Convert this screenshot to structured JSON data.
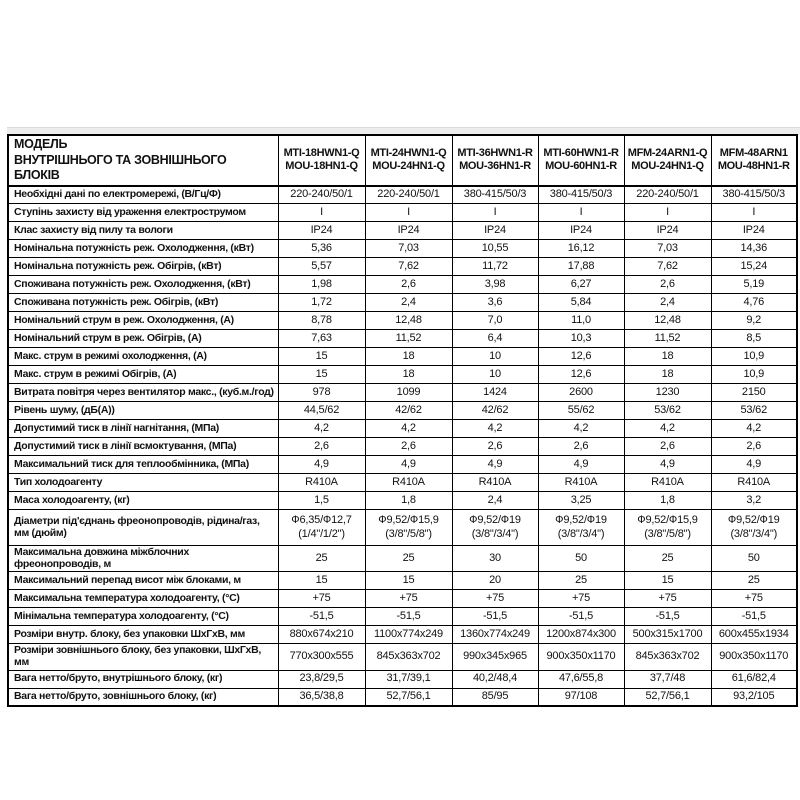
{
  "page": {
    "background_color": "#ffffff",
    "strip_color": "#ededed",
    "table_border_color": "#000000",
    "text_color": "#111111"
  },
  "table": {
    "header": {
      "param_title": "МОДЕЛЬ\nВНУТРІШНЬОГО ТА ЗОВНІШНЬОГО БЛОКІВ",
      "models": [
        {
          "text": "MTI-18HWN1-Q\nMOU-18HN1-Q"
        },
        {
          "text": "MTI-24HWN1-Q\nMOU-24HN1-Q"
        },
        {
          "text": "MTI-36HWN1-R\nMOU-36HN1-R"
        },
        {
          "text": "MTI-60HWN1-R\nMOU-60HN1-R"
        },
        {
          "text": "MFM-24ARN1-Q\nMOU-24HN1-Q"
        },
        {
          "text": "MFM-48ARN1\nMOU-48HN1-R"
        }
      ]
    },
    "rows": [
      {
        "label": "Необхідні дані по електромережі, (В/Гц/Ф)",
        "values": [
          "220-240/50/1",
          "220-240/50/1",
          "380-415/50/3",
          "380-415/50/3",
          "220-240/50/1",
          "380-415/50/3"
        ]
      },
      {
        "label": "Ступінь захисту від ураження електрострумом",
        "values": [
          "I",
          "I",
          "I",
          "I",
          "I",
          "I"
        ]
      },
      {
        "label": "Клас захисту від пилу та вологи",
        "values": [
          "IP24",
          "IP24",
          "IP24",
          "IP24",
          "IP24",
          "IP24"
        ]
      },
      {
        "label": "Номінальна потужність реж. Охолодження, (кВт)",
        "values": [
          "5,36",
          "7,03",
          "10,55",
          "16,12",
          "7,03",
          "14,36"
        ]
      },
      {
        "label": "Номінальна потужність реж. Обігрів, (кВт)",
        "values": [
          "5,57",
          "7,62",
          "11,72",
          "17,88",
          "7,62",
          "15,24"
        ]
      },
      {
        "label": "Споживана потужність реж. Охолодження, (кВт)",
        "values": [
          "1,98",
          "2,6",
          "3,98",
          "6,27",
          "2,6",
          "5,19"
        ]
      },
      {
        "label": "Споживана потужність реж. Обігрів, (кВт)",
        "values": [
          "1,72",
          "2,4",
          "3,6",
          "5,84",
          "2,4",
          "4,76"
        ]
      },
      {
        "label": "Номінальний струм в реж. Охолодження, (А)",
        "values": [
          "8,78",
          "12,48",
          "7,0",
          "11,0",
          "12,48",
          "9,2"
        ]
      },
      {
        "label": "Номінальний струм в реж. Обігрів, (А)",
        "values": [
          "7,63",
          "11,52",
          "6,4",
          "10,3",
          "11,52",
          "8,5"
        ]
      },
      {
        "label": "Макс. струм в режимі охолодження, (А)",
        "values": [
          "15",
          "18",
          "10",
          "12,6",
          "18",
          "10,9"
        ]
      },
      {
        "label": "Макс. струм в режимі Обігрів, (А)",
        "values": [
          "15",
          "18",
          "10",
          "12,6",
          "18",
          "10,9"
        ]
      },
      {
        "label": "Витрата повітря через вентилятор макс., (куб.м./год)",
        "values": [
          "978",
          "1099",
          "1424",
          "2600",
          "1230",
          "2150"
        ]
      },
      {
        "label": "Рівень шуму, (дБ(А))",
        "values": [
          "44,5/62",
          "42/62",
          "42/62",
          "55/62",
          "53/62",
          "53/62"
        ]
      },
      {
        "label": "Допустимий тиск в лінії нагнітання, (МПа)",
        "values": [
          "4,2",
          "4,2",
          "4,2",
          "4,2",
          "4,2",
          "4,2"
        ]
      },
      {
        "label": "Допустимий тиск в лінії всмоктування, (МПа)",
        "values": [
          "2,6",
          "2,6",
          "2,6",
          "2,6",
          "2,6",
          "2,6"
        ]
      },
      {
        "label": "Максимальний тиск для теплообмінника, (МПа)",
        "values": [
          "4,9",
          "4,9",
          "4,9",
          "4,9",
          "4,9",
          "4,9"
        ]
      },
      {
        "label": "Тип холодоагенту",
        "values": [
          "R410A",
          "R410A",
          "R410A",
          "R410A",
          "R410A",
          "R410A"
        ]
      },
      {
        "label": "Маса холодоагенту, (кг)",
        "values": [
          "1,5",
          "1,8",
          "2,4",
          "3,25",
          "1,8",
          "3,2"
        ]
      },
      {
        "label": "Діаметри під'єднань фреонопроводів, рідина/газ, мм (дюйм)",
        "tall": true,
        "values": [
          "Ф6,35/Ф12,7\n(1/4\"/1/2\")",
          "Ф9,52/Ф15,9\n(3/8\"/5/8\")",
          "Ф9,52/Ф19\n(3/8\"/3/4\")",
          "Ф9,52/Ф19\n(3/8\"/3/4\")",
          "Ф9,52/Ф15,9\n(3/8\"/5/8\")",
          "Ф9,52/Ф19\n(3/8\"/3/4\")"
        ]
      },
      {
        "label": "Максимальна довжина міжблочних фреонопроводів, м",
        "values": [
          "25",
          "25",
          "30",
          "50",
          "25",
          "50"
        ]
      },
      {
        "label": "Максимальний перепад висот між блоками, м",
        "values": [
          "15",
          "15",
          "20",
          "25",
          "15",
          "25"
        ]
      },
      {
        "label": "Максимальна температура холодоагенту, (°С)",
        "values": [
          "+75",
          "+75",
          "+75",
          "+75",
          "+75",
          "+75"
        ]
      },
      {
        "label": "Мінімальна температура холодоагенту, (°С)",
        "values": [
          "-51,5",
          "-51,5",
          "-51,5",
          "-51,5",
          "-51,5",
          "-51,5"
        ]
      },
      {
        "label": "Розміри внутр. блоку, без упаковки ШхГхВ, мм",
        "values": [
          "880х674х210",
          "1100х774х249",
          "1360х774х249",
          "1200х874х300",
          "500х315х1700",
          "600х455х1934"
        ]
      },
      {
        "label": "Розміри зовнішнього блоку, без упаковки, ШхГхВ, мм",
        "values": [
          "770х300х555",
          "845х363х702",
          "990х345х965",
          "900х350х1170",
          "845х363х702",
          "900х350х1170"
        ]
      },
      {
        "label": "Вага нетто/бруто, внутрішнього блоку, (кг)",
        "values": [
          "23,8/29,5",
          "31,7/39,1",
          "40,2/48,4",
          "47,6/55,8",
          "37,7/48",
          "61,6/82,4"
        ]
      },
      {
        "label": "Вага нетто/бруто, зовнішнього блоку, (кг)",
        "values": [
          "36,5/38,8",
          "52,7/56,1",
          "85/95",
          "97/108",
          "52,7/56,1",
          "93,2/105"
        ]
      }
    ]
  }
}
